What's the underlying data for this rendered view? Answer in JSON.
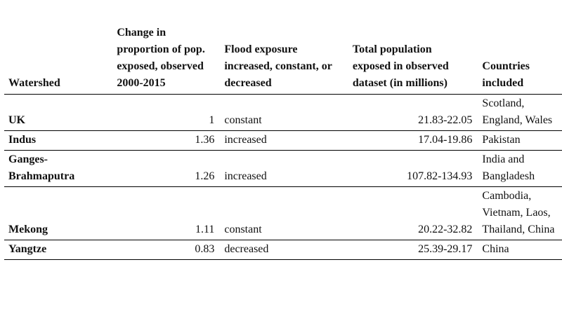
{
  "headers": [
    "Watershed",
    "Change in proportion of pop. exposed, observed 2000-2015",
    "Flood exposure increased, constant, or decreased",
    "Total population exposed in observed dataset (in millions)",
    "Countries included"
  ],
  "rows": [
    {
      "watershed": "UK",
      "change": "1",
      "exposure": "constant",
      "population": "21.83-22.05",
      "countries": "Scotland, England, Wales"
    },
    {
      "watershed": "Indus",
      "change": "1.36",
      "exposure": "increased",
      "population": "17.04-19.86",
      "countries": "Pakistan"
    },
    {
      "watershed": "Ganges-Brahmaputra",
      "change": "1.26",
      "exposure": "increased",
      "population": "107.82-134.93",
      "countries": "India and Bangladesh"
    },
    {
      "watershed": "Mekong",
      "change": "1.11",
      "exposure": "constant",
      "population": "20.22-32.82",
      "countries": "Cambodia, Vietnam, Laos, Thailand, China"
    },
    {
      "watershed": "Yangtze",
      "change": "0.83",
      "exposure": "decreased",
      "population": "25.39-29.17",
      "countries": "China"
    }
  ]
}
